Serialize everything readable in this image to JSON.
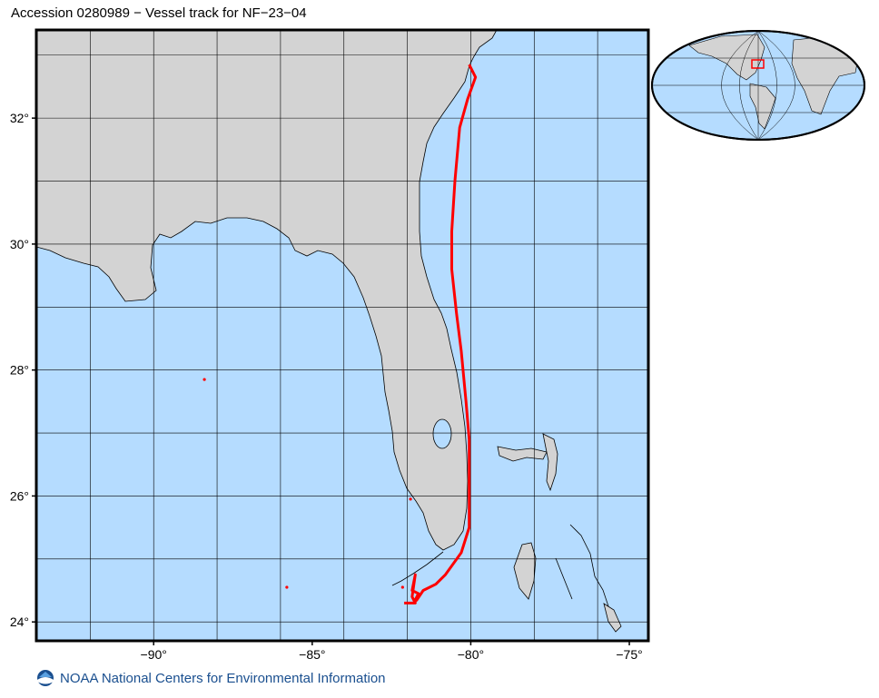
{
  "title": "Accession 0280989 − Vessel track for NF−23−04",
  "map": {
    "lon_range": [
      -93.7,
      -74.4
    ],
    "lat_range": [
      23.7,
      33.4
    ],
    "lon_ticks": [
      {
        "value": -90,
        "label": "−90°"
      },
      {
        "value": -85,
        "label": "−85°"
      },
      {
        "value": -80,
        "label": "−80°"
      },
      {
        "value": -75,
        "label": "−75°"
      }
    ],
    "lat_ticks": [
      {
        "value": 24,
        "label": "24°"
      },
      {
        "value": 26,
        "label": "26°"
      },
      {
        "value": 28,
        "label": "28°"
      },
      {
        "value": 30,
        "label": "30°"
      },
      {
        "value": 32,
        "label": "32°"
      }
    ],
    "grid_lons": [
      -92,
      -90,
      -88,
      -86,
      -84,
      -82,
      -80,
      -78,
      -76
    ],
    "grid_lats": [
      24,
      25,
      26,
      27,
      28,
      29,
      30,
      31,
      32,
      33
    ],
    "colors": {
      "ocean": "#b5dcff",
      "land": "#d3d3d3",
      "coast": "#000000",
      "track": "#ff0000",
      "grid": "#000000"
    },
    "vessel_track": [
      [
        -80.05,
        32.85
      ],
      [
        -79.85,
        32.65
      ],
      [
        -80.1,
        32.3
      ],
      [
        -80.35,
        31.85
      ],
      [
        -80.5,
        31.0
      ],
      [
        -80.6,
        30.2
      ],
      [
        -80.6,
        29.6
      ],
      [
        -80.45,
        28.9
      ],
      [
        -80.3,
        28.3
      ],
      [
        -80.15,
        27.5
      ],
      [
        -80.05,
        26.9
      ],
      [
        -80.05,
        26.2
      ],
      [
        -80.05,
        25.5
      ],
      [
        -80.3,
        25.1
      ],
      [
        -80.8,
        24.75
      ],
      [
        -81.1,
        24.6
      ],
      [
        -81.5,
        24.5
      ],
      [
        -81.7,
        24.35
      ],
      [
        -81.8,
        24.3
      ],
      [
        -81.65,
        24.45
      ],
      [
        -81.85,
        24.5
      ],
      [
        -81.75,
        24.75
      ],
      [
        -81.85,
        24.4
      ],
      [
        -81.75,
        24.3
      ],
      [
        -82.1,
        24.3
      ]
    ],
    "track_points": [
      [
        -88.4,
        27.85
      ],
      [
        -85.8,
        24.55
      ],
      [
        -82.15,
        24.55
      ],
      [
        -81.9,
        25.95
      ]
    ]
  },
  "inset_map": {
    "description_icon": "globe-locator-icon",
    "highlight_lon": -82,
    "highlight_lat": 28.5
  },
  "footer": {
    "logo_icon": "noaa-logo-icon",
    "text": "NOAA National Centers for Environmental Information"
  }
}
